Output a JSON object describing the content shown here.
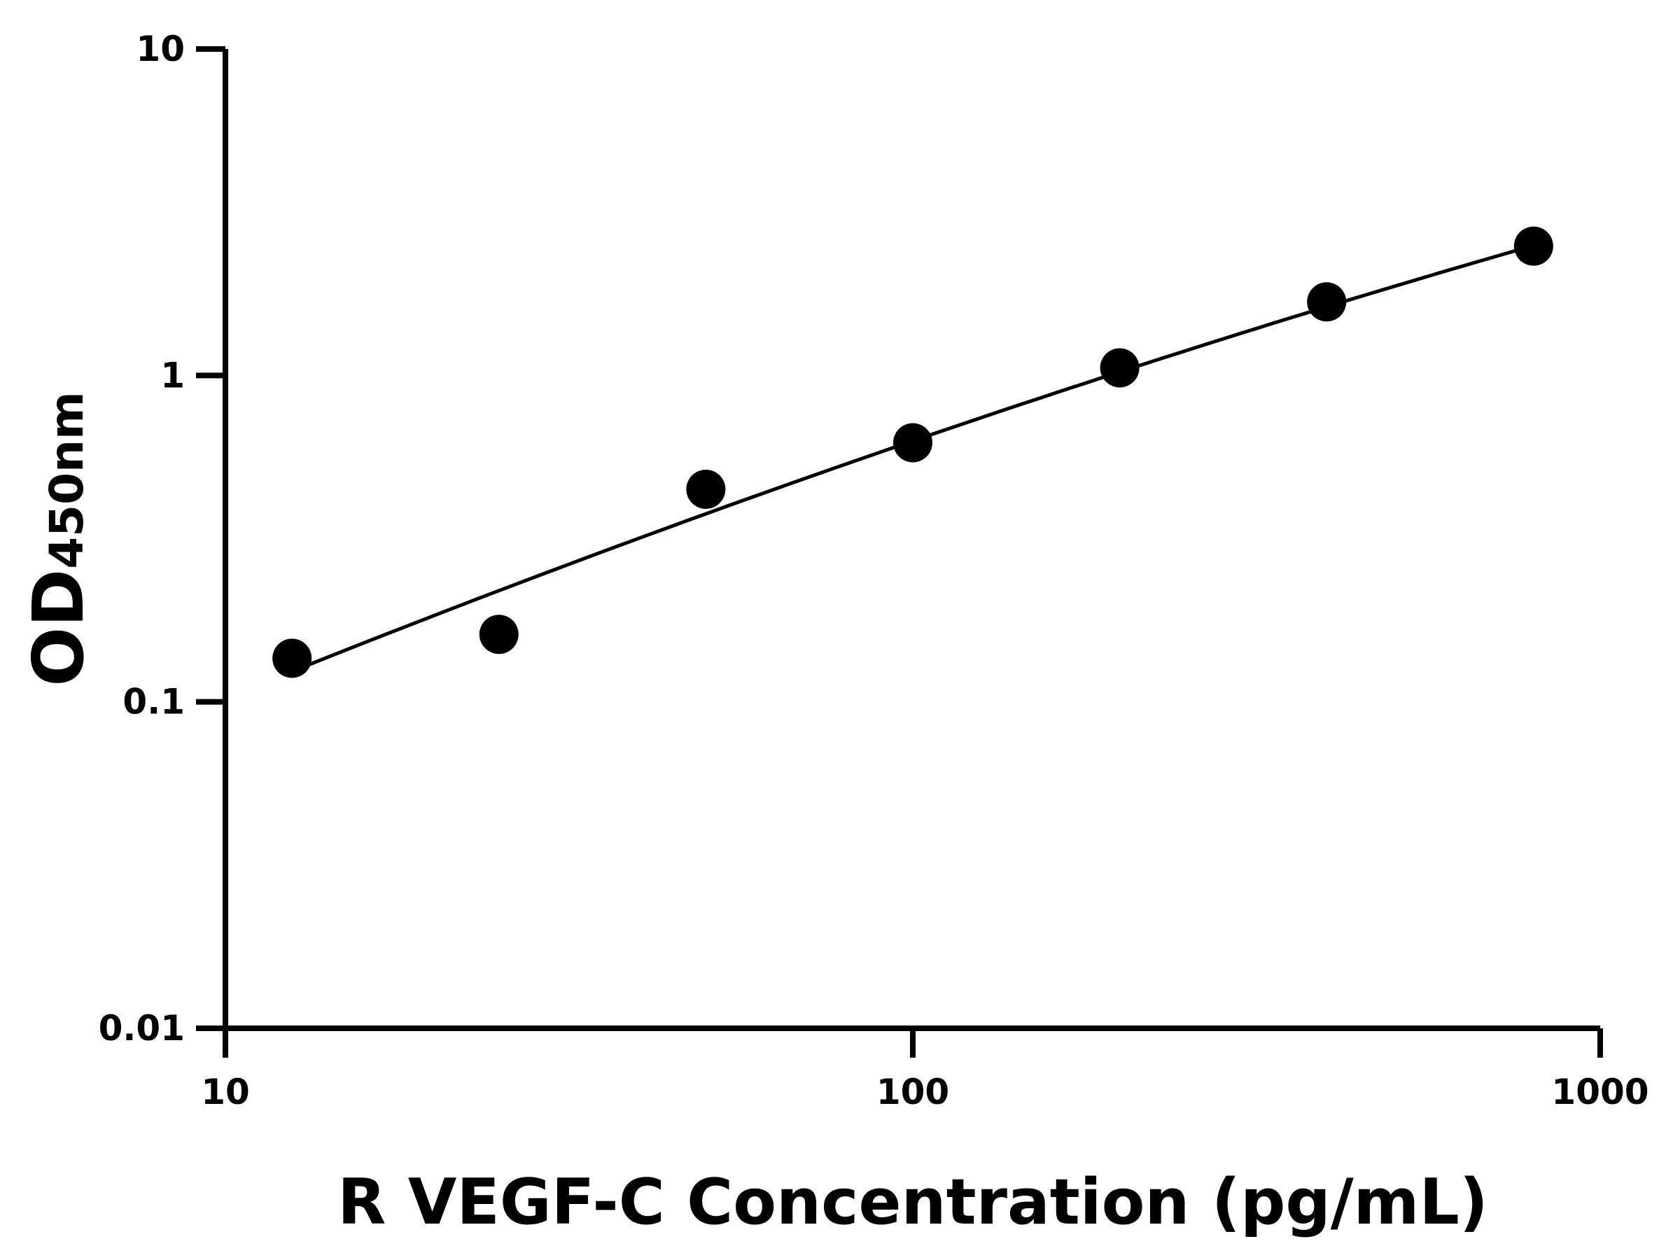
{
  "chart_data": {
    "type": "scatter",
    "title": "",
    "xlabel": "R VEGF-C Concentration (pg/mL)",
    "ylabel_main": "OD",
    "ylabel_sub": "450nm",
    "x_scale": "log",
    "y_scale": "log",
    "xlim": [
      10,
      1000
    ],
    "ylim": [
      0.01,
      10
    ],
    "x_ticks": [
      10,
      100,
      1000
    ],
    "x_tick_labels": [
      "10",
      "100",
      "1000"
    ],
    "y_ticks": [
      0.01,
      0.1,
      1,
      10
    ],
    "y_tick_labels": [
      "0.01",
      "0.1",
      "1",
      "10"
    ],
    "grid": false,
    "legend": "none",
    "colors": {
      "points": "#000000",
      "line": "#000000",
      "axes": "#000000"
    },
    "series": [
      {
        "x": [
          12.5,
          25,
          50,
          100,
          200,
          400,
          800
        ],
        "y": [
          0.136,
          0.161,
          0.448,
          0.622,
          1.055,
          1.68,
          2.49
        ]
      }
    ],
    "fit_curve": {
      "x": [
        12.5,
        100,
        800
      ],
      "y": [
        0.124,
        0.63,
        2.5
      ]
    }
  }
}
